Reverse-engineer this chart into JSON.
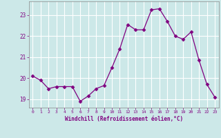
{
  "x": [
    0,
    1,
    2,
    3,
    4,
    5,
    6,
    7,
    8,
    9,
    10,
    11,
    12,
    13,
    14,
    15,
    16,
    17,
    18,
    19,
    20,
    21,
    22,
    23
  ],
  "y": [
    20.1,
    19.9,
    19.5,
    19.6,
    19.6,
    19.6,
    18.9,
    19.15,
    19.5,
    19.65,
    20.5,
    21.4,
    22.55,
    22.3,
    22.3,
    23.25,
    23.3,
    22.7,
    22.0,
    21.85,
    22.2,
    20.85,
    19.7,
    19.1
  ],
  "line_color": "#800080",
  "marker": "D",
  "marker_size": 2.5,
  "bg_color": "#cce8e8",
  "grid_color": "#ffffff",
  "xlabel": "Windchill (Refroidissement éolien,°C)",
  "xlabel_color": "#800080",
  "tick_color": "#800080",
  "ylim": [
    18.6,
    23.65
  ],
  "xlim": [
    -0.5,
    23.5
  ],
  "yticks": [
    19,
    20,
    21,
    22,
    23
  ],
  "xticks": [
    0,
    1,
    2,
    3,
    4,
    5,
    6,
    7,
    8,
    9,
    10,
    11,
    12,
    13,
    14,
    15,
    16,
    17,
    18,
    19,
    20,
    21,
    22,
    23
  ]
}
